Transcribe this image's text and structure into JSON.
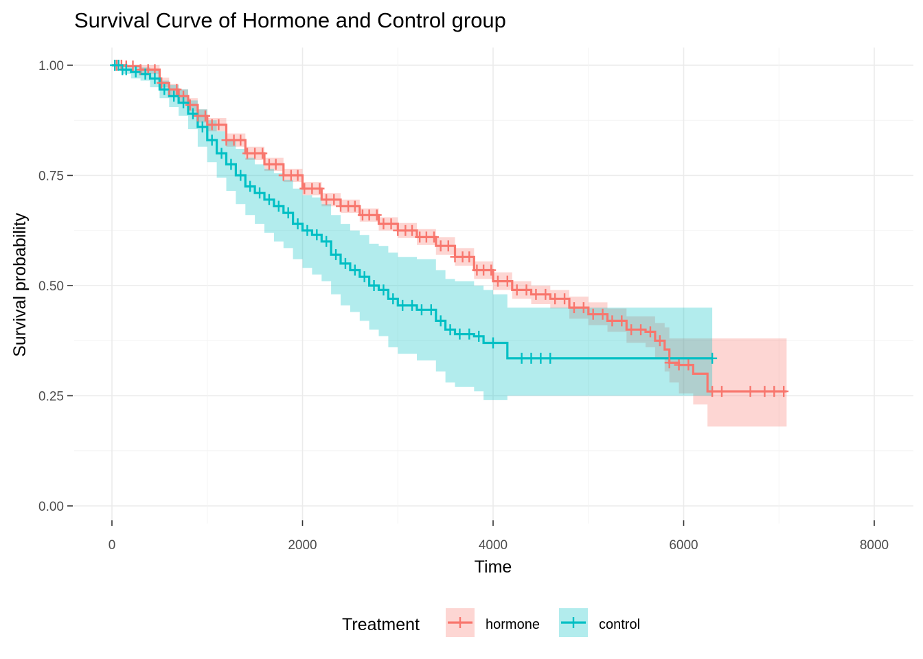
{
  "chart_data": {
    "type": "line",
    "subtype": "kaplan-meier survival curve with confidence bands and censor marks",
    "title": "Survival Curve of Hormone and Control group",
    "xlabel": "Time",
    "ylabel": "Survival probability",
    "xlim": [
      -200,
      8200
    ],
    "ylim": [
      -0.04,
      1.04
    ],
    "x_ticks": [
      0,
      2000,
      4000,
      6000,
      8000
    ],
    "x_tick_labels": [
      "0",
      "2000",
      "4000",
      "6000",
      "8000"
    ],
    "y_ticks": [
      0,
      0.25,
      0.5,
      0.75,
      1.0
    ],
    "y_tick_labels": [
      "0.00",
      "0.25",
      "0.50",
      "0.75",
      "1.00"
    ],
    "grid": true,
    "legend": {
      "title": "Treatment",
      "position": "bottom",
      "entries": [
        "hormone",
        "control"
      ]
    },
    "series": [
      {
        "name": "hormone",
        "color": "#F8766D",
        "band_color": "#F8766D",
        "band_opacity": 0.3,
        "x": [
          0,
          150,
          300,
          500,
          600,
          700,
          800,
          900,
          1000,
          1200,
          1400,
          1600,
          1800,
          2000,
          2200,
          2400,
          2600,
          2800,
          3000,
          3200,
          3400,
          3600,
          3800,
          4000,
          4200,
          4400,
          4600,
          4800,
          5000,
          5200,
          5400,
          5600,
          5700,
          5800,
          5850,
          5950,
          6100,
          6250,
          7000,
          7080
        ],
        "y": [
          1.0,
          0.998,
          0.99,
          0.96,
          0.945,
          0.93,
          0.91,
          0.885,
          0.865,
          0.83,
          0.8,
          0.775,
          0.75,
          0.72,
          0.695,
          0.68,
          0.66,
          0.64,
          0.625,
          0.61,
          0.59,
          0.565,
          0.535,
          0.51,
          0.49,
          0.48,
          0.47,
          0.45,
          0.435,
          0.42,
          0.4,
          0.395,
          0.375,
          0.355,
          0.325,
          0.32,
          0.3,
          0.26,
          0.26,
          0.26
        ],
        "lower": [
          1.0,
          0.995,
          0.98,
          0.95,
          0.93,
          0.915,
          0.895,
          0.87,
          0.85,
          0.815,
          0.785,
          0.76,
          0.735,
          0.705,
          0.68,
          0.665,
          0.645,
          0.625,
          0.608,
          0.592,
          0.57,
          0.545,
          0.515,
          0.49,
          0.47,
          0.458,
          0.448,
          0.425,
          0.41,
          0.395,
          0.37,
          0.36,
          0.335,
          0.305,
          0.28,
          0.255,
          0.23,
          0.18,
          0.18,
          0.18
        ],
        "upper": [
          1.0,
          1.0,
          1.0,
          0.972,
          0.958,
          0.945,
          0.925,
          0.9,
          0.88,
          0.845,
          0.815,
          0.79,
          0.765,
          0.735,
          0.71,
          0.695,
          0.675,
          0.655,
          0.642,
          0.628,
          0.61,
          0.585,
          0.555,
          0.53,
          0.51,
          0.5,
          0.49,
          0.475,
          0.462,
          0.448,
          0.43,
          0.43,
          0.415,
          0.405,
          0.38,
          0.38,
          0.38,
          0.38,
          0.38,
          0.38
        ],
        "censor_x": [
          50,
          100,
          150,
          220,
          300,
          380,
          450,
          520,
          600,
          680,
          750,
          820,
          900,
          980,
          1050,
          1120,
          1200,
          1280,
          1350,
          1420,
          1500,
          1580,
          1650,
          1720,
          1800,
          1880,
          1950,
          2020,
          2100,
          2180,
          2250,
          2330,
          2400,
          2480,
          2550,
          2630,
          2700,
          2780,
          2850,
          2930,
          3000,
          3080,
          3150,
          3230,
          3300,
          3380,
          3450,
          3530,
          3600,
          3680,
          3750,
          3830,
          3900,
          3980,
          4050,
          4150,
          4250,
          4350,
          4450,
          4550,
          4650,
          4750,
          4850,
          4950,
          5050,
          5150,
          5250,
          5350,
          5450,
          5550,
          5650,
          5750,
          5850,
          5950,
          6050,
          6300,
          6400,
          6700,
          6850,
          6950,
          7050
        ]
      },
      {
        "name": "control",
        "color": "#00BFC4",
        "band_color": "#00BFC4",
        "band_opacity": 0.3,
        "x": [
          0,
          100,
          200,
          300,
          400,
          500,
          600,
          700,
          800,
          900,
          1000,
          1100,
          1200,
          1300,
          1400,
          1500,
          1600,
          1700,
          1800,
          1900,
          2000,
          2100,
          2200,
          2300,
          2400,
          2500,
          2600,
          2700,
          2800,
          2900,
          3000,
          3200,
          3400,
          3500,
          3600,
          3800,
          3900,
          4000,
          4150,
          4200,
          6300
        ],
        "y": [
          1.0,
          0.99,
          0.985,
          0.98,
          0.97,
          0.945,
          0.93,
          0.915,
          0.89,
          0.86,
          0.83,
          0.8,
          0.775,
          0.75,
          0.725,
          0.71,
          0.695,
          0.68,
          0.665,
          0.64,
          0.625,
          0.615,
          0.6,
          0.57,
          0.55,
          0.535,
          0.52,
          0.5,
          0.49,
          0.47,
          0.455,
          0.445,
          0.42,
          0.4,
          0.39,
          0.385,
          0.37,
          0.37,
          0.335,
          0.335,
          0.335
        ],
        "lower": [
          1.0,
          0.98,
          0.97,
          0.965,
          0.95,
          0.925,
          0.905,
          0.885,
          0.855,
          0.815,
          0.78,
          0.745,
          0.715,
          0.685,
          0.66,
          0.64,
          0.62,
          0.6,
          0.585,
          0.56,
          0.54,
          0.525,
          0.51,
          0.48,
          0.455,
          0.44,
          0.42,
          0.4,
          0.385,
          0.36,
          0.345,
          0.33,
          0.305,
          0.28,
          0.27,
          0.26,
          0.24,
          0.24,
          0.25,
          0.25,
          0.25
        ],
        "upper": [
          1.0,
          1.0,
          1.0,
          0.995,
          0.99,
          0.965,
          0.955,
          0.945,
          0.92,
          0.9,
          0.875,
          0.85,
          0.83,
          0.81,
          0.79,
          0.775,
          0.765,
          0.755,
          0.74,
          0.72,
          0.705,
          0.7,
          0.685,
          0.66,
          0.64,
          0.625,
          0.615,
          0.595,
          0.59,
          0.575,
          0.565,
          0.56,
          0.535,
          0.515,
          0.51,
          0.5,
          0.49,
          0.48,
          0.45,
          0.45,
          0.45
        ],
        "censor_x": [
          30,
          70,
          110,
          150,
          250,
          350,
          450,
          550,
          650,
          750,
          850,
          950,
          1050,
          1150,
          1250,
          1350,
          1450,
          1550,
          1650,
          1750,
          1850,
          1950,
          2050,
          2150,
          2250,
          2350,
          2450,
          2550,
          2650,
          2750,
          2850,
          2950,
          3050,
          3150,
          3250,
          3350,
          3450,
          3550,
          3650,
          3750,
          3850,
          4000,
          4300,
          4400,
          4500,
          4600,
          6300
        ]
      }
    ]
  }
}
